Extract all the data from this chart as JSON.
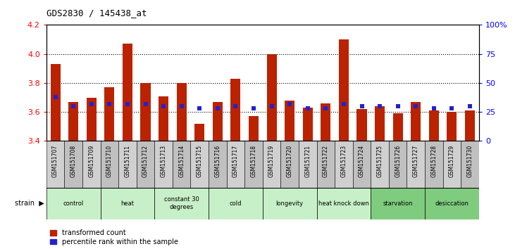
{
  "title": "GDS2830 / 145438_at",
  "samples": [
    "GSM151707",
    "GSM151708",
    "GSM151709",
    "GSM151710",
    "GSM151711",
    "GSM151712",
    "GSM151713",
    "GSM151714",
    "GSM151715",
    "GSM151716",
    "GSM151717",
    "GSM151718",
    "GSM151719",
    "GSM151720",
    "GSM151721",
    "GSM151722",
    "GSM151723",
    "GSM151724",
    "GSM151725",
    "GSM151726",
    "GSM151727",
    "GSM151728",
    "GSM151729",
    "GSM151730"
  ],
  "red_values": [
    3.93,
    3.67,
    3.7,
    3.77,
    4.07,
    3.8,
    3.71,
    3.8,
    3.52,
    3.67,
    3.83,
    3.57,
    4.0,
    3.68,
    3.63,
    3.66,
    4.1,
    3.62,
    3.64,
    3.59,
    3.67,
    3.61,
    3.6,
    3.61
  ],
  "blue_pct": [
    38,
    30,
    32,
    32,
    32,
    32,
    30,
    30,
    28,
    28,
    30,
    28,
    30,
    32,
    28,
    28,
    32,
    30,
    30,
    30,
    30,
    28,
    28,
    30
  ],
  "groups": [
    {
      "label": "control",
      "start": 0,
      "end": 3,
      "color": "#c8f0c8"
    },
    {
      "label": "heat",
      "start": 3,
      "end": 6,
      "color": "#c8f0c8"
    },
    {
      "label": "constant 30\ndegrees",
      "start": 6,
      "end": 9,
      "color": "#c8f0c8"
    },
    {
      "label": "cold",
      "start": 9,
      "end": 12,
      "color": "#c8f0c8"
    },
    {
      "label": "longevity",
      "start": 12,
      "end": 15,
      "color": "#c8f0c8"
    },
    {
      "label": "heat knock down",
      "start": 15,
      "end": 18,
      "color": "#c8f0c8"
    },
    {
      "label": "starvation",
      "start": 18,
      "end": 21,
      "color": "#7fcc7f"
    },
    {
      "label": "desiccation",
      "start": 21,
      "end": 24,
      "color": "#7fcc7f"
    }
  ],
  "ylim_left": [
    3.4,
    4.2
  ],
  "ylim_right": [
    0,
    100
  ],
  "yticks_left": [
    3.4,
    3.6,
    3.8,
    4.0,
    4.2
  ],
  "yticks_right": [
    0,
    25,
    50,
    75,
    100
  ],
  "ytick_labels_right": [
    "0",
    "25",
    "50",
    "75",
    "100%"
  ],
  "bar_color_red": "#bb2200",
  "bar_color_blue": "#2222cc",
  "bar_width": 0.55,
  "baseline": 3.4,
  "sample_strip_color": "#cccccc",
  "bg_color": "#ffffff"
}
